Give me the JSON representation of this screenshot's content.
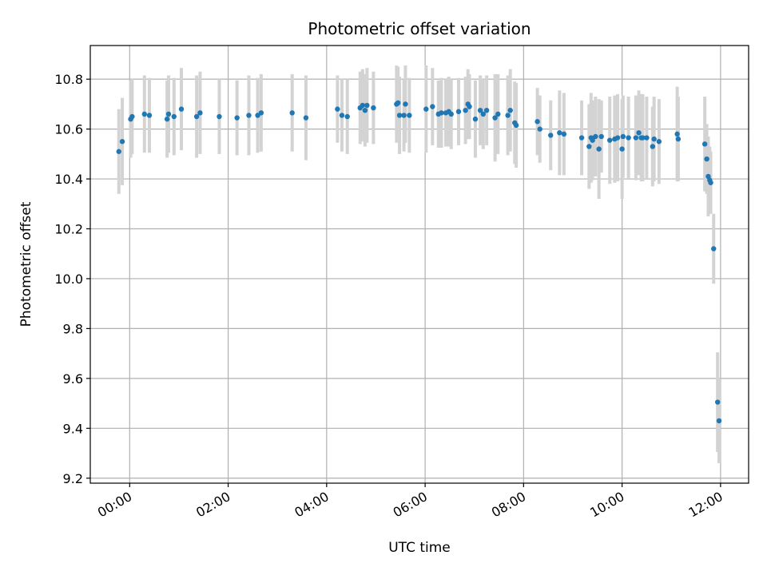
{
  "chart_data": {
    "type": "scatter",
    "title": "Photometric offset variation",
    "xlabel": "UTC time",
    "ylabel": "Photometric offset",
    "x_unit": "UTC hour of day",
    "xlim": [
      -0.8,
      12.57
    ],
    "ylim": [
      9.18,
      10.935
    ],
    "x_ticks": [
      0,
      2,
      4,
      6,
      8,
      10,
      12
    ],
    "x_tick_labels": [
      "00:00",
      "02:00",
      "04:00",
      "06:00",
      "08:00",
      "10:00",
      "12:00"
    ],
    "y_ticks": [
      9.2,
      9.4,
      9.6,
      9.8,
      10.0,
      10.2,
      10.4,
      10.6,
      10.8
    ],
    "y_tick_labels": [
      "9.2",
      "9.4",
      "9.6",
      "9.8",
      "10.0",
      "10.2",
      "10.4",
      "10.6",
      "10.8"
    ],
    "grid": true,
    "colors": {
      "point": "#1f77b4",
      "errorbar": "#d3d3d3",
      "grid": "#b0b0b0"
    },
    "series": [
      {
        "x": [
          -0.22,
          -0.15,
          0.02,
          0.05,
          0.3,
          0.4,
          0.76,
          0.79,
          0.9,
          1.05,
          1.36,
          1.43,
          1.82,
          2.18,
          2.42,
          2.6,
          2.67,
          3.3,
          3.58,
          4.22,
          4.31,
          4.42,
          4.68,
          4.73,
          4.78,
          4.82,
          4.95,
          5.42,
          5.45,
          5.48,
          5.57,
          5.6,
          5.68,
          6.02,
          6.15,
          6.27,
          6.33,
          6.42,
          6.48,
          6.53,
          6.68,
          6.82,
          6.87,
          6.9,
          7.02,
          7.12,
          7.18,
          7.25,
          7.42,
          7.48,
          7.68,
          7.73,
          7.82,
          7.85,
          8.28,
          8.33,
          8.55,
          8.73,
          8.82,
          9.18,
          9.33,
          9.37,
          9.4,
          9.46,
          9.53,
          9.58,
          9.75,
          9.85,
          9.91,
          10.0,
          10.02,
          10.13,
          10.28,
          10.34,
          10.39,
          10.42,
          10.5,
          10.62,
          10.65,
          10.75,
          11.12,
          11.14,
          11.68,
          11.72,
          11.75,
          11.78,
          11.8,
          11.86,
          11.94,
          11.97
        ],
        "y": [
          10.51,
          10.55,
          10.64,
          10.65,
          10.66,
          10.655,
          10.64,
          10.66,
          10.65,
          10.68,
          10.65,
          10.665,
          10.65,
          10.645,
          10.655,
          10.655,
          10.665,
          10.665,
          10.645,
          10.68,
          10.655,
          10.65,
          10.685,
          10.695,
          10.675,
          10.695,
          10.685,
          10.7,
          10.705,
          10.655,
          10.655,
          10.7,
          10.655,
          10.68,
          10.69,
          10.66,
          10.665,
          10.665,
          10.67,
          10.66,
          10.67,
          10.675,
          10.7,
          10.69,
          10.64,
          10.675,
          10.66,
          10.675,
          10.645,
          10.66,
          10.655,
          10.675,
          10.625,
          10.615,
          10.63,
          10.6,
          10.575,
          10.585,
          10.58,
          10.565,
          10.53,
          10.565,
          10.555,
          10.57,
          10.52,
          10.57,
          10.555,
          10.56,
          10.565,
          10.52,
          10.57,
          10.565,
          10.565,
          10.585,
          10.565,
          10.565,
          10.565,
          10.53,
          10.56,
          10.55,
          10.58,
          10.56,
          10.54,
          10.48,
          10.41,
          10.395,
          10.385,
          10.12,
          9.505,
          9.43
        ],
        "err": [
          0.17,
          0.175,
          0.155,
          0.15,
          0.155,
          0.15,
          0.155,
          0.155,
          0.155,
          0.165,
          0.165,
          0.165,
          0.15,
          0.15,
          0.16,
          0.15,
          0.155,
          0.155,
          0.17,
          0.135,
          0.145,
          0.15,
          0.145,
          0.145,
          0.145,
          0.15,
          0.145,
          0.155,
          0.145,
          0.155,
          0.145,
          0.155,
          0.15,
          0.175,
          0.155,
          0.135,
          0.14,
          0.135,
          0.14,
          0.14,
          0.135,
          0.135,
          0.14,
          0.13,
          0.155,
          0.14,
          0.14,
          0.14,
          0.175,
          0.16,
          0.16,
          0.165,
          0.165,
          0.17,
          0.135,
          0.135,
          0.14,
          0.17,
          0.165,
          0.15,
          0.17,
          0.18,
          0.16,
          0.16,
          0.2,
          0.145,
          0.175,
          0.175,
          0.175,
          0.2,
          0.165,
          0.165,
          0.17,
          0.17,
          0.175,
          0.175,
          0.165,
          0.16,
          0.17,
          0.17,
          0.19,
          0.17,
          0.19,
          0.14,
          0.16,
          0.135,
          0.125,
          0.14,
          0.2,
          0.17
        ]
      }
    ]
  }
}
